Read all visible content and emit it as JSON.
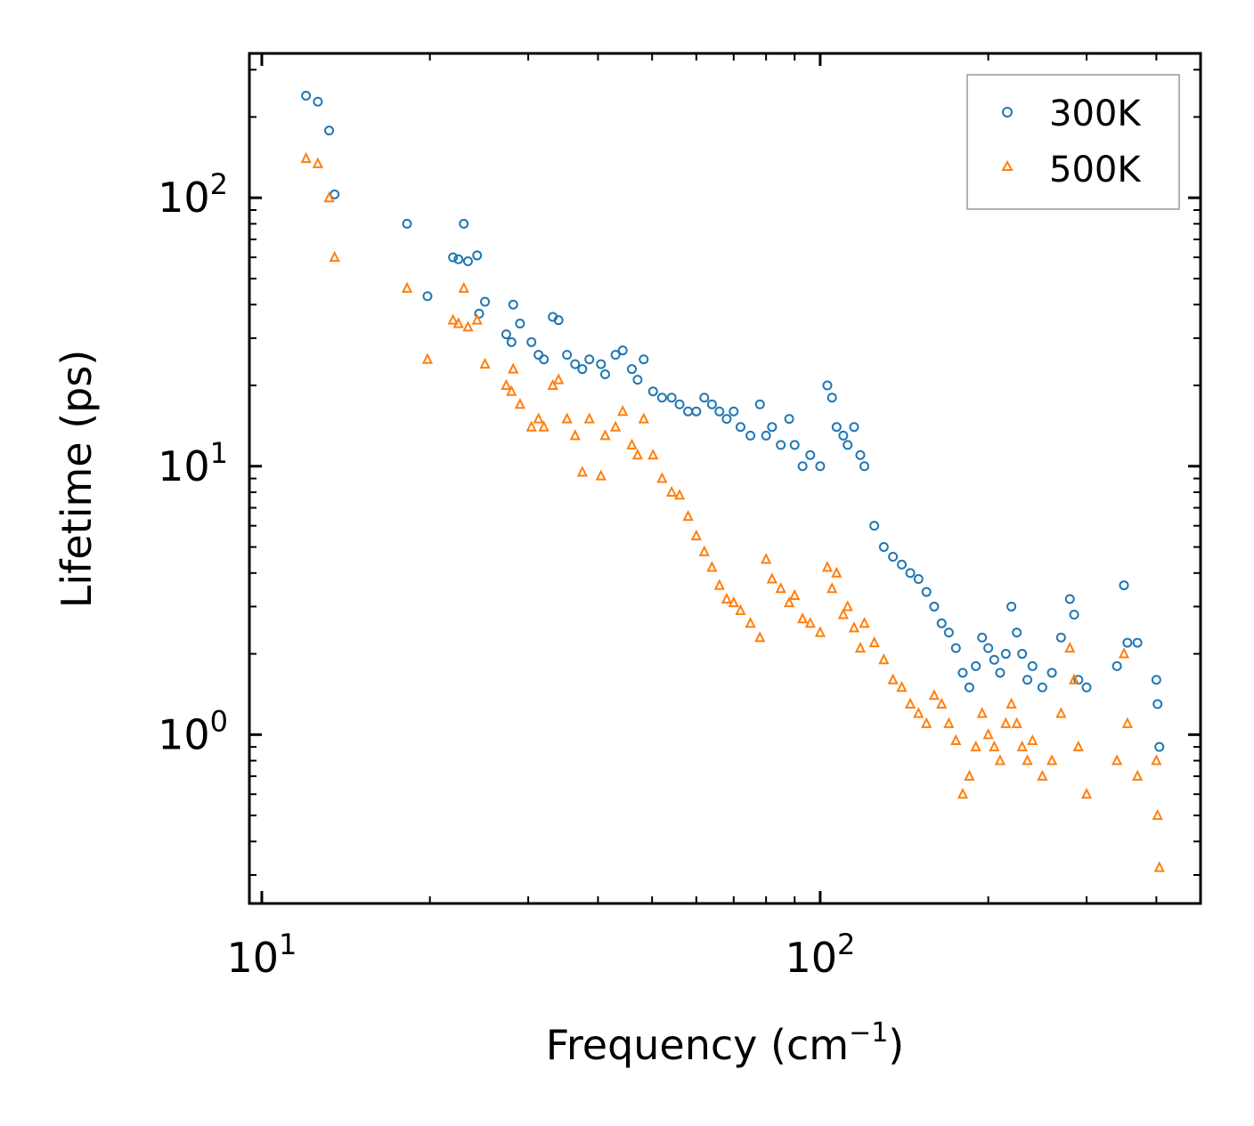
{
  "chart_data": {
    "type": "scatter",
    "xlabel": "Frequency (cm",
    "xlabel_sup": "−1",
    "xlabel_end": ")",
    "ylabel": "Lifetime (ps)",
    "xscale": "log",
    "yscale": "log",
    "xlim": [
      9.5,
      480
    ],
    "ylim": [
      0.235,
      345
    ],
    "x_ticks": [
      {
        "base": "10",
        "exp": "1",
        "value": 10
      },
      {
        "base": "10",
        "exp": "2",
        "value": 100
      }
    ],
    "y_ticks": [
      {
        "base": "10",
        "exp": "0",
        "value": 1
      },
      {
        "base": "10",
        "exp": "1",
        "value": 10
      },
      {
        "base": "10",
        "exp": "2",
        "value": 100
      }
    ],
    "legend_position": "top-right",
    "series": [
      {
        "name": "300K",
        "marker": "circle",
        "color": "#1f77b4",
        "points": [
          [
            12,
            240
          ],
          [
            12.6,
            228
          ],
          [
            13.2,
            178
          ],
          [
            13.5,
            103
          ],
          [
            18.2,
            80
          ],
          [
            19.8,
            43
          ],
          [
            22,
            60
          ],
          [
            22.5,
            59
          ],
          [
            23,
            80
          ],
          [
            23.4,
            58
          ],
          [
            24.3,
            61
          ],
          [
            24.5,
            37
          ],
          [
            25.1,
            41
          ],
          [
            27.4,
            31
          ],
          [
            28.2,
            40
          ],
          [
            28,
            29
          ],
          [
            29,
            34
          ],
          [
            30.4,
            29
          ],
          [
            31.3,
            26
          ],
          [
            32,
            25
          ],
          [
            33.2,
            36
          ],
          [
            34,
            35
          ],
          [
            35.2,
            26
          ],
          [
            36.4,
            24
          ],
          [
            37.5,
            23
          ],
          [
            38.6,
            25
          ],
          [
            40.5,
            24
          ],
          [
            41.2,
            22
          ],
          [
            43,
            26
          ],
          [
            44.3,
            27
          ],
          [
            46,
            23
          ],
          [
            47.1,
            21
          ],
          [
            48.3,
            25
          ],
          [
            50.2,
            19
          ],
          [
            52.1,
            18
          ],
          [
            54.2,
            18
          ],
          [
            56,
            17
          ],
          [
            58,
            16
          ],
          [
            60,
            16
          ],
          [
            62,
            18
          ],
          [
            64,
            17
          ],
          [
            66,
            16
          ],
          [
            68,
            15
          ],
          [
            70,
            16
          ],
          [
            72,
            14
          ],
          [
            75,
            13
          ],
          [
            78,
            17
          ],
          [
            80,
            13
          ],
          [
            82,
            14
          ],
          [
            85,
            12
          ],
          [
            88,
            15
          ],
          [
            90,
            12
          ],
          [
            93,
            10
          ],
          [
            96,
            11
          ],
          [
            100,
            10
          ],
          [
            103,
            20
          ],
          [
            105,
            18
          ],
          [
            107,
            14
          ],
          [
            110,
            13
          ],
          [
            112,
            12
          ],
          [
            115,
            14
          ],
          [
            118,
            11
          ],
          [
            120,
            10
          ],
          [
            125,
            6
          ],
          [
            130,
            5
          ],
          [
            135,
            4.6
          ],
          [
            140,
            4.3
          ],
          [
            145,
            4.0
          ],
          [
            150,
            3.8
          ],
          [
            155,
            3.4
          ],
          [
            160,
            3.0
          ],
          [
            165,
            2.6
          ],
          [
            170,
            2.4
          ],
          [
            175,
            2.1
          ],
          [
            180,
            1.7
          ],
          [
            185,
            1.5
          ],
          [
            190,
            1.8
          ],
          [
            195,
            2.3
          ],
          [
            200,
            2.1
          ],
          [
            205,
            1.9
          ],
          [
            210,
            1.7
          ],
          [
            215,
            2.0
          ],
          [
            220,
            3.0
          ],
          [
            225,
            2.4
          ],
          [
            230,
            2.0
          ],
          [
            235,
            1.6
          ],
          [
            240,
            1.8
          ],
          [
            250,
            1.5
          ],
          [
            260,
            1.7
          ],
          [
            270,
            2.3
          ],
          [
            280,
            3.2
          ],
          [
            285,
            2.8
          ],
          [
            290,
            1.6
          ],
          [
            300,
            1.5
          ],
          [
            340,
            1.8
          ],
          [
            350,
            3.6
          ],
          [
            355,
            2.2
          ],
          [
            370,
            2.2
          ],
          [
            400,
            1.6
          ],
          [
            402,
            1.3
          ],
          [
            405,
            0.9
          ]
        ]
      },
      {
        "name": "500K",
        "marker": "triangle",
        "color": "#ff7f0e",
        "points": [
          [
            12,
            140
          ],
          [
            12.6,
            134
          ],
          [
            13.2,
            100
          ],
          [
            13.5,
            60
          ],
          [
            18.2,
            46
          ],
          [
            19.8,
            25
          ],
          [
            22,
            35
          ],
          [
            22.5,
            34
          ],
          [
            23,
            46
          ],
          [
            23.4,
            33
          ],
          [
            24.3,
            35
          ],
          [
            25.1,
            24
          ],
          [
            27.4,
            20
          ],
          [
            28.2,
            23
          ],
          [
            28,
            19
          ],
          [
            29,
            17
          ],
          [
            30.4,
            14
          ],
          [
            31.3,
            15
          ],
          [
            32,
            14
          ],
          [
            33.2,
            20
          ],
          [
            34,
            21
          ],
          [
            35.2,
            15
          ],
          [
            36.4,
            13
          ],
          [
            37.5,
            9.5
          ],
          [
            38.6,
            15
          ],
          [
            40.5,
            9.2
          ],
          [
            41.2,
            13
          ],
          [
            43,
            14
          ],
          [
            44.3,
            16
          ],
          [
            46,
            12
          ],
          [
            47.1,
            11
          ],
          [
            48.3,
            15
          ],
          [
            50.2,
            11
          ],
          [
            52.1,
            9
          ],
          [
            54.2,
            8
          ],
          [
            56,
            7.8
          ],
          [
            58,
            6.5
          ],
          [
            60,
            5.5
          ],
          [
            62,
            4.8
          ],
          [
            64,
            4.2
          ],
          [
            66,
            3.6
          ],
          [
            68,
            3.2
          ],
          [
            70,
            3.1
          ],
          [
            72,
            2.9
          ],
          [
            75,
            2.6
          ],
          [
            78,
            2.3
          ],
          [
            80,
            4.5
          ],
          [
            82,
            3.8
          ],
          [
            85,
            3.5
          ],
          [
            88,
            3.1
          ],
          [
            90,
            3.3
          ],
          [
            93,
            2.7
          ],
          [
            96,
            2.6
          ],
          [
            100,
            2.4
          ],
          [
            103,
            4.2
          ],
          [
            105,
            3.5
          ],
          [
            107,
            4.0
          ],
          [
            110,
            2.8
          ],
          [
            112,
            3.0
          ],
          [
            115,
            2.5
          ],
          [
            118,
            2.1
          ],
          [
            120,
            2.6
          ],
          [
            125,
            2.2
          ],
          [
            130,
            1.9
          ],
          [
            135,
            1.6
          ],
          [
            140,
            1.5
          ],
          [
            145,
            1.3
          ],
          [
            150,
            1.2
          ],
          [
            155,
            1.1
          ],
          [
            160,
            1.4
          ],
          [
            165,
            1.3
          ],
          [
            170,
            1.1
          ],
          [
            175,
            0.95
          ],
          [
            180,
            0.6
          ],
          [
            185,
            0.7
          ],
          [
            190,
            0.9
          ],
          [
            195,
            1.2
          ],
          [
            200,
            1.0
          ],
          [
            205,
            0.9
          ],
          [
            210,
            0.8
          ],
          [
            215,
            1.1
          ],
          [
            220,
            1.3
          ],
          [
            225,
            1.1
          ],
          [
            230,
            0.9
          ],
          [
            235,
            0.8
          ],
          [
            240,
            0.95
          ],
          [
            250,
            0.7
          ],
          [
            260,
            0.8
          ],
          [
            270,
            1.2
          ],
          [
            280,
            2.1
          ],
          [
            285,
            1.6
          ],
          [
            290,
            0.9
          ],
          [
            300,
            0.6
          ],
          [
            340,
            0.8
          ],
          [
            350,
            2.0
          ],
          [
            355,
            1.1
          ],
          [
            370,
            0.7
          ],
          [
            400,
            0.8
          ],
          [
            402,
            0.5
          ],
          [
            405,
            0.32
          ]
        ]
      }
    ]
  }
}
